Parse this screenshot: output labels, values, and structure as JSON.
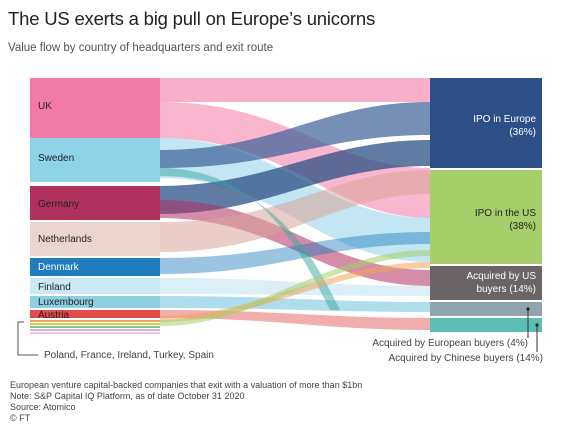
{
  "header": {
    "title": "The US exerts a big pull on Europe’s unicorns",
    "subtitle": "Value flow by country of headquarters and exit route"
  },
  "sources": [
    {
      "name": "UK",
      "color": "#f27aa7",
      "text_color": "#222222"
    },
    {
      "name": "Sweden",
      "color": "#8fd3e8",
      "text_color": "#222222"
    },
    {
      "name": "Germany",
      "color": "#b0305e",
      "text_color": "#222222"
    },
    {
      "name": "Netherlands",
      "color": "#ead6cf",
      "text_color": "#222222"
    },
    {
      "name": "Denmark",
      "color": "#1f7dbf",
      "text_color": "#ffffff"
    },
    {
      "name": "Finland",
      "color": "#cbe9f2",
      "text_color": "#222222"
    },
    {
      "name": "Luxembourg",
      "color": "#8fcfe2",
      "text_color": "#222222"
    },
    {
      "name": "Austria",
      "color": "#e34a4a",
      "text_color": "#222222"
    }
  ],
  "small_sources_label": "Poland, France, Ireland, Turkey, Spain",
  "small_sources_colors": [
    "#f2a35c",
    "#d6c84a",
    "#8cc28c",
    "#c7b8e0",
    "#f5c6d6"
  ],
  "targets": [
    {
      "name": "IPO in Europe",
      "pct": "(36%)",
      "color": "#2b4f86",
      "text_color": "#ffffff"
    },
    {
      "name": "IPO in the US",
      "pct": "(38%)",
      "color": "#a6cf6b",
      "text_color": "#222222"
    },
    {
      "name": "Acquired by US",
      "pct": "buyers (14%)",
      "color": "#6a6466",
      "text_color": "#ffffff"
    },
    {
      "name": "Acquired by European buyers (4%)",
      "pct": "",
      "color": "#8fa6b0",
      "text_color": "#222222"
    },
    {
      "name": "Acquired by Chinese buyers (14%)",
      "pct": "",
      "color": "#5cbfb5",
      "text_color": "#222222"
    }
  ],
  "notes": [
    "European venture capital-backed companies that exit with a valuation of more than $1bn",
    "Note: S&P Capital IQ Platform, as of date October 31 2020",
    "Source: Atomico",
    "© FT"
  ]
}
